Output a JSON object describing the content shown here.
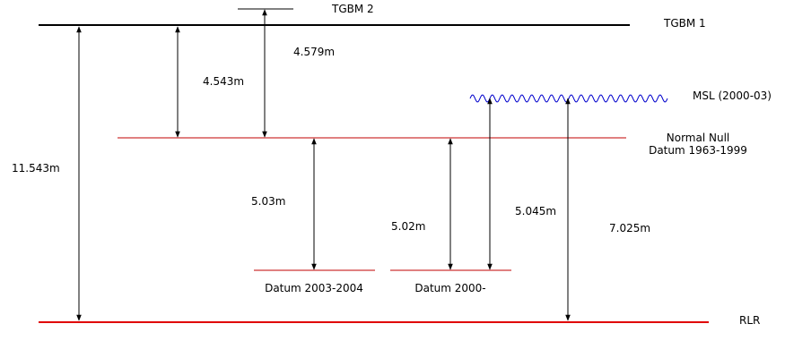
{
  "levels": {
    "tgbm2": "TGBM 2",
    "tgbm1": "TGBM 1",
    "msl": "MSL (2000-03)",
    "normal_null_line1": "Normal Null",
    "normal_null_line2": "Datum 1963-1999",
    "datum_2003_2004": "Datum 2003-2004",
    "datum_2000": "Datum 2000-",
    "rlr": "RLR"
  },
  "measurements": {
    "tgbm1_to_rlr": "11.543m",
    "tgbm1_to_normal_null": "4.543m",
    "tgbm2_to_normal_null": "4.579m",
    "normal_null_to_datum_2003_2004": "5.03m",
    "normal_null_to_datum_2000": "5.02m",
    "msl_to_datum_2000": "5.045m",
    "msl_to_rlr": "7.025m"
  },
  "colors": {
    "benchmark_line": "#000000",
    "datum_line": "#c00000",
    "rlr_line": "#e00000",
    "msl_wave": "#0000cc",
    "arrow": "#000000"
  }
}
